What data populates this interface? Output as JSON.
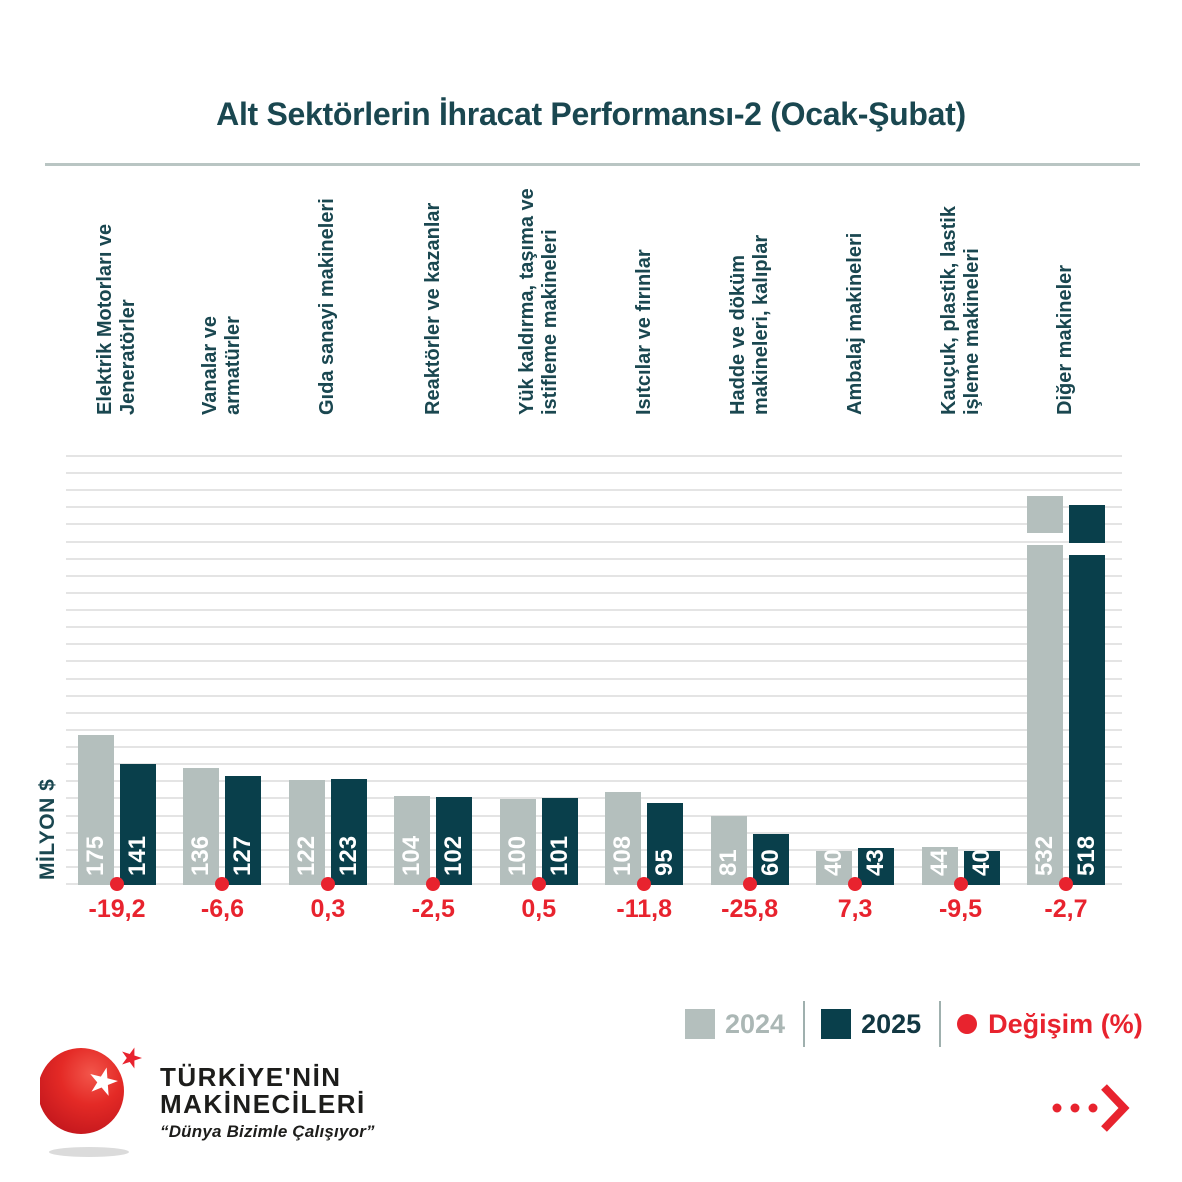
{
  "title": "Alt Sektörlerin İhracat Performansı-2 (Ocak-Şubat)",
  "chart_data": {
    "type": "bar",
    "title": "Alt Sektörlerin İhracat Performansı-2 (Ocak-Şubat)",
    "ylabel": "MİLYON $",
    "ylim": [
      0,
      500
    ],
    "gridline_step": 20,
    "grid": true,
    "legend_position": "bottom-right",
    "categories": [
      "Elektrik Motorları ve Jeneratörler",
      "Vanalar ve armatürler",
      "Gıda sanayi makineleri",
      "Reaktörler ve kazanlar",
      "Yük kaldırma, taşıma ve istifleme makineleri",
      "Isıtcılar ve fırınlar",
      "Hadde ve döküm makineleri, kalıplar",
      "Ambalaj makineleri",
      "Kauçuk, plastik, lastik işleme makineleri",
      "Diğer makineler"
    ],
    "category_lines": [
      [
        "Elektrik Motorları ve",
        "Jeneratörler"
      ],
      [
        "Vanalar ve",
        "armatürler"
      ],
      [
        "Gıda sanayi makineleri"
      ],
      [
        "Reaktörler ve kazanlar"
      ],
      [
        "Yük kaldırma, taşıma ve",
        "istifleme makineleri"
      ],
      [
        "Isıtcılar ve fırınlar"
      ],
      [
        "Hadde ve döküm",
        "makineleri, kalıplar"
      ],
      [
        "Ambalaj makineleri"
      ],
      [
        "Kauçuk, plastik, lastik",
        "işleme makineleri"
      ],
      [
        "Diğer makineler"
      ]
    ],
    "series": [
      {
        "name": "2024",
        "values": [
          175,
          136,
          122,
          104,
          100,
          108,
          81,
          40,
          44,
          532
        ],
        "color": "#b4bfbd"
      },
      {
        "name": "2025",
        "values": [
          141,
          127,
          123,
          102,
          101,
          95,
          60,
          43,
          40,
          518
        ],
        "color": "#093f4b"
      }
    ],
    "change_series": {
      "name": "Değişim (%)",
      "values": [
        "-19,2",
        "-6,6",
        "0,3",
        "-2,5",
        "0,5",
        "-11,8",
        "-25,8",
        "7,3",
        "-9,5",
        "-2,7"
      ],
      "color": "#e8232e"
    },
    "broken_axis_categories": [
      "Diğer makineler"
    ]
  },
  "legend": {
    "label_2024": "2024",
    "label_2025": "2025",
    "label_change": "Değişim (%)"
  },
  "y_axis_label": "MİLYON $",
  "logo": {
    "name_line1": "TÜRKİYE'NİN",
    "name_line2": "MAKİNECİLERİ",
    "tagline": "“Dünya Bizimle Çalışıyor”"
  },
  "colors": {
    "teal_text": "#1a4750",
    "bar_2024": "#b4bfbd",
    "bar_2025": "#093f4b",
    "red": "#e8232e",
    "gridline": "#e4e4e4",
    "divider": "#b9c5c3",
    "legend_2024_text": "#abb7b5",
    "legend_2025_text": "#123742"
  }
}
